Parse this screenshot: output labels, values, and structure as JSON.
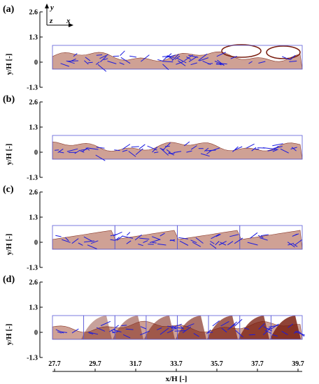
{
  "figure": {
    "panels": [
      {
        "label": "(a)"
      },
      {
        "label": "(b)"
      },
      {
        "label": "(c)"
      },
      {
        "label": "(d)"
      }
    ],
    "y_axis": {
      "title": "y/H [-]",
      "ticks": [
        "2.6",
        "1.3",
        "0",
        "-1.3"
      ]
    },
    "x_axis": {
      "title": "x/H [-]",
      "ticks": [
        "27.7",
        "29.7",
        "31.7",
        "33.7",
        "35.7",
        "37.7",
        "39.7"
      ]
    },
    "coordinate_labels": {
      "y": "y",
      "z": "z",
      "x": "x"
    },
    "colors": {
      "fluid": "#cfa195",
      "velocity_vectors": "#1a1ae0",
      "domain_box": "#5a5ad8",
      "dark_phase": "#7a1e10"
    }
  }
}
